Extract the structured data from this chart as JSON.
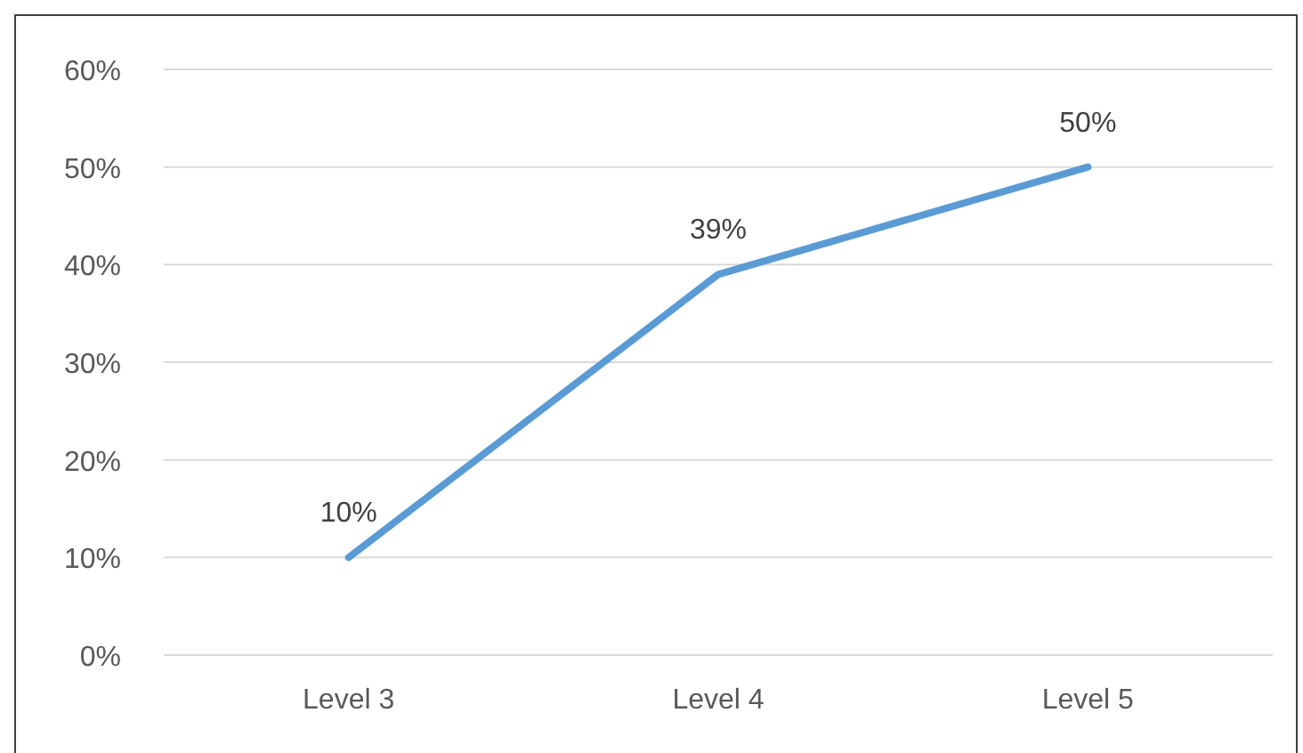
{
  "chart_data": {
    "type": "line",
    "categories": [
      "Level 3",
      "Level 4",
      "Level 5"
    ],
    "series": [
      {
        "color": "#5b9bd5",
        "values": [
          10,
          39,
          50
        ],
        "value_labels": [
          "10%",
          "39%",
          "50%"
        ]
      }
    ],
    "ylim": [
      0,
      60
    ],
    "yticks": [
      {
        "value": 0,
        "label": "0%"
      },
      {
        "value": 10,
        "label": "10%"
      },
      {
        "value": 20,
        "label": "20%"
      },
      {
        "value": 30,
        "label": "30%"
      },
      {
        "value": 40,
        "label": "40%"
      },
      {
        "value": 50,
        "label": "50%"
      },
      {
        "value": 60,
        "label": "60%"
      }
    ],
    "grid": "y",
    "marker": "none",
    "line_style": "solid"
  }
}
